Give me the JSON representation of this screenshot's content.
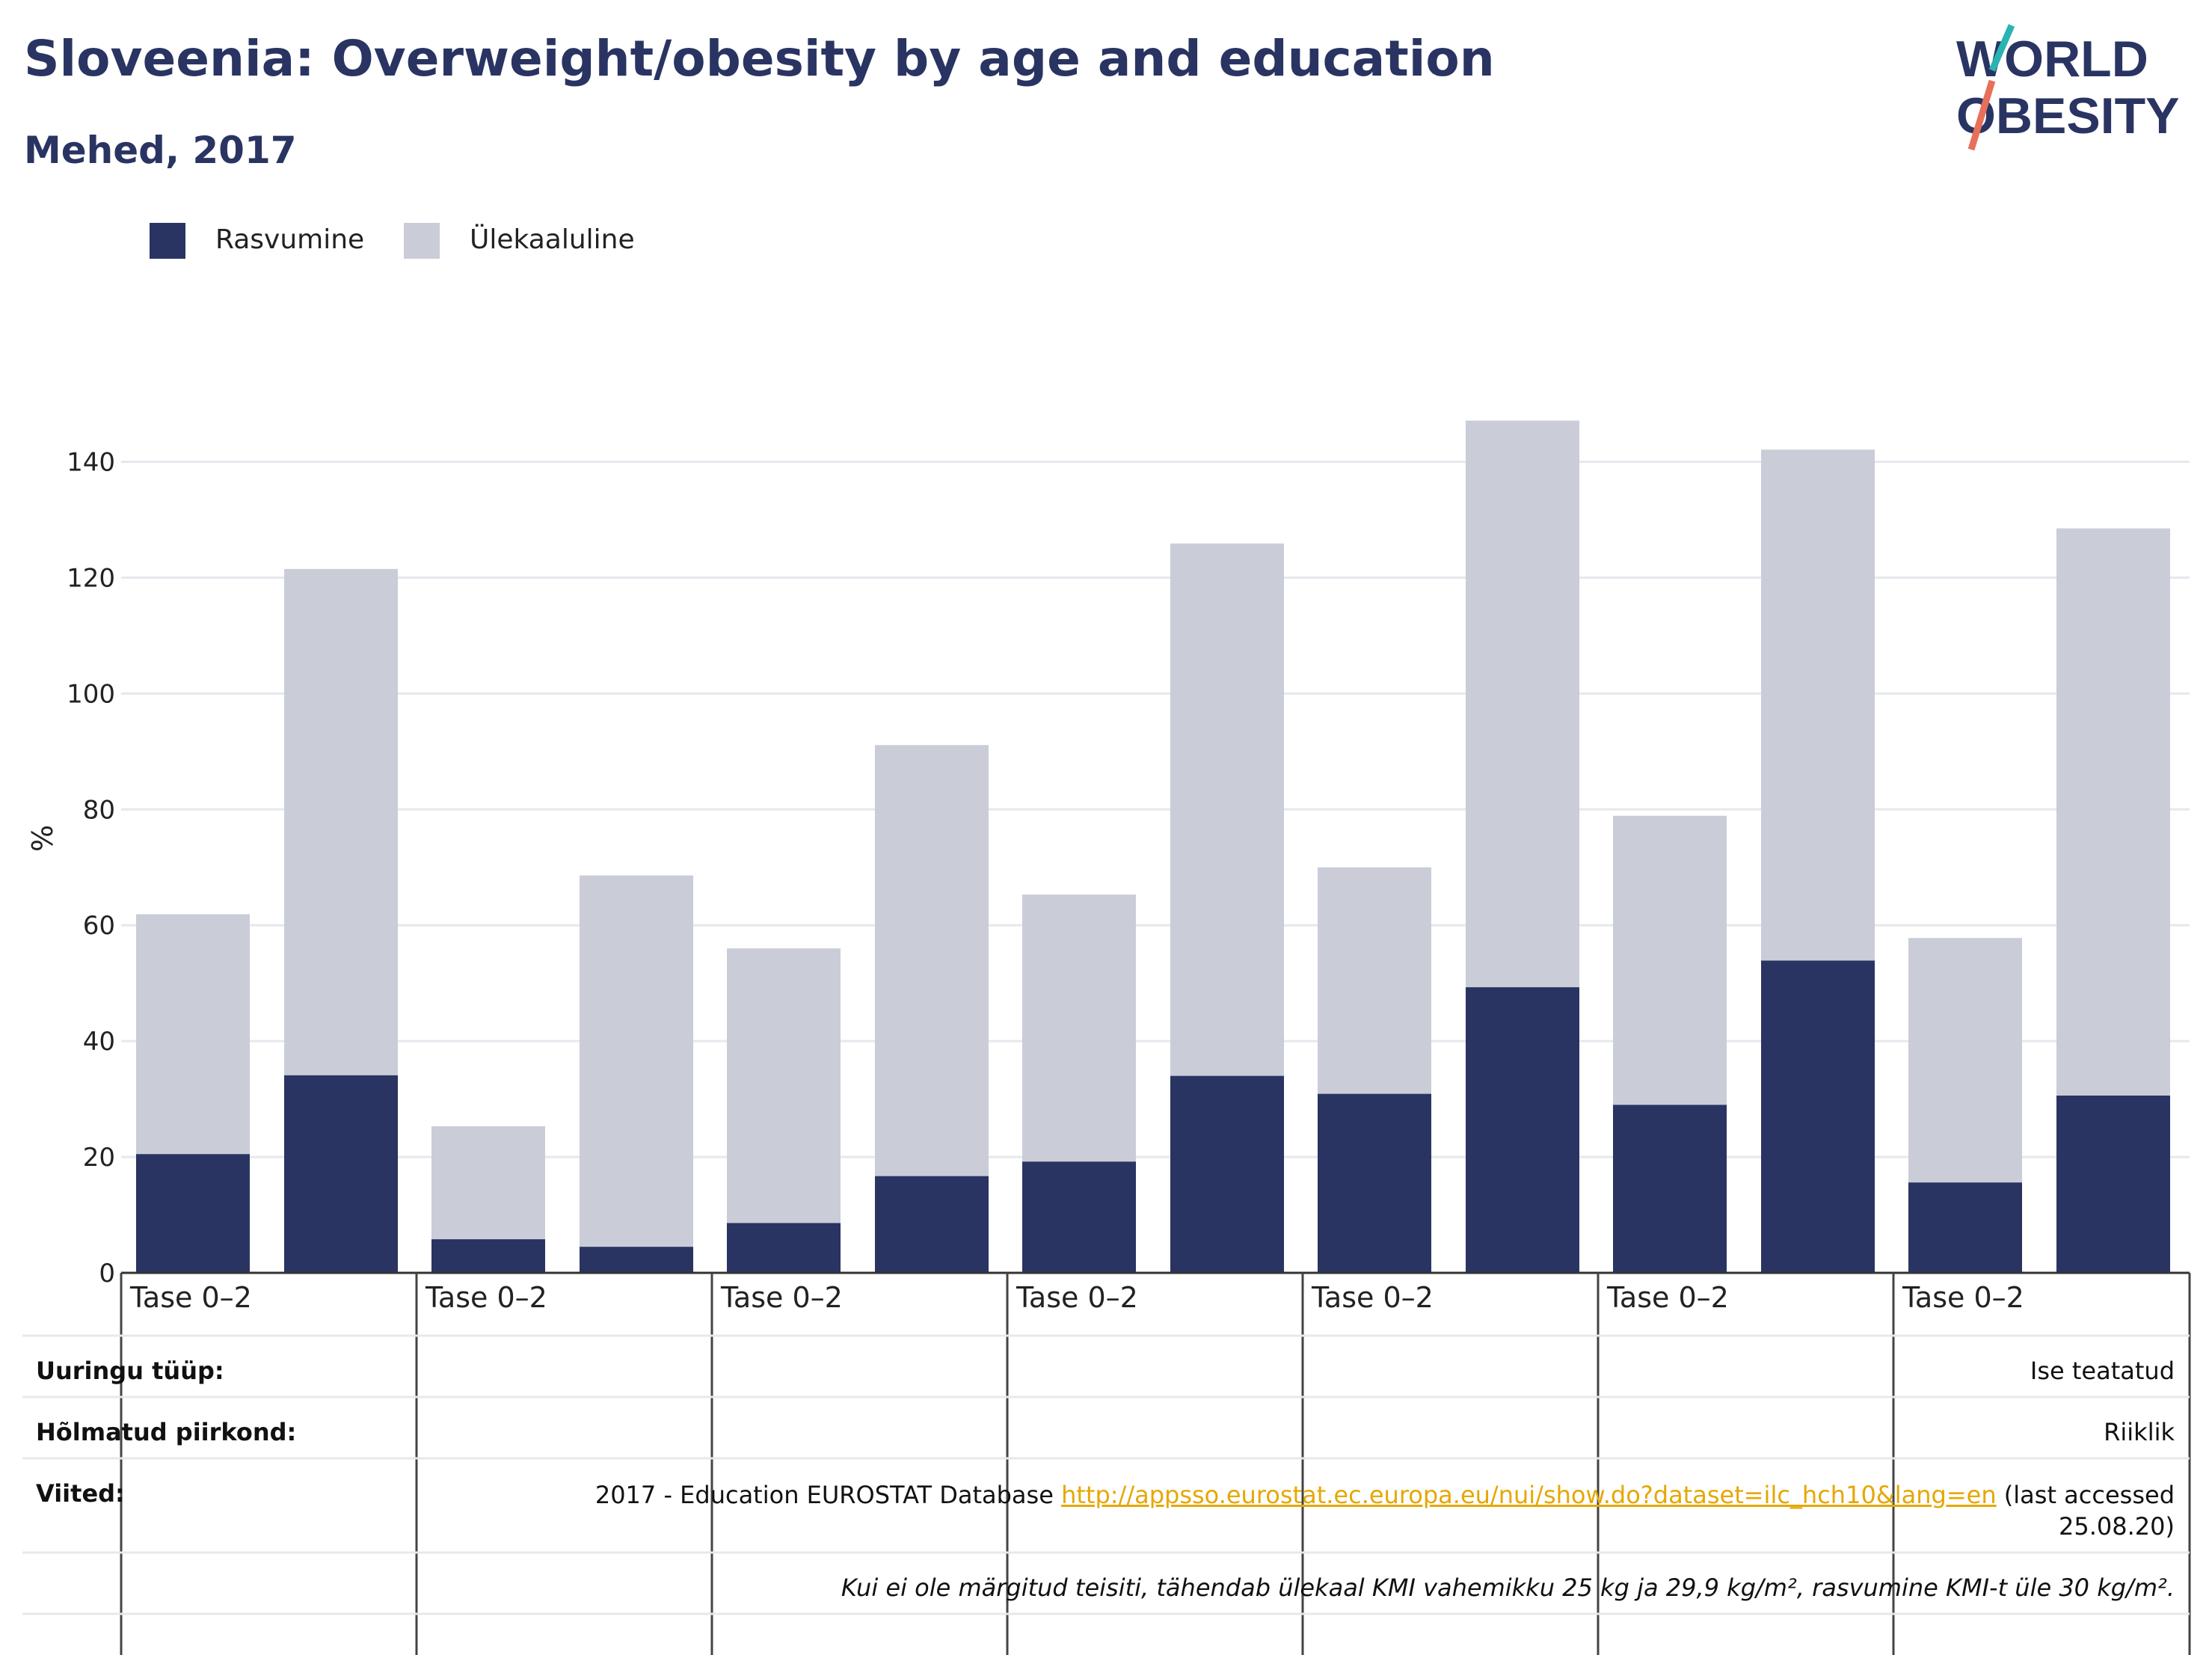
{
  "title": "Sloveenia: Overweight/obesity by age and education",
  "subtitle": "Mehed, 2017",
  "logo": {
    "line1": "WORLD",
    "line2": "OBESITY",
    "accent_top": "#2ab3b3",
    "accent_bottom": "#e8705a",
    "text_color": "#293462"
  },
  "colors": {
    "obesity": "#293462",
    "overweight": "#cacdd8",
    "grid": "#e6e8ee",
    "axis": "#333333"
  },
  "legend": {
    "obesity_label": "Rasvumine",
    "overweight_label": "Ülekaaluline"
  },
  "chart_data": {
    "type": "bar",
    "stacked": true,
    "ylabel": "%",
    "ylim": [
      0,
      150
    ],
    "yticks": [
      0,
      20,
      40,
      60,
      80,
      100,
      120,
      140
    ],
    "grid": true,
    "legend_position": "top-left",
    "group_labels": [
      "Tase 0–2",
      "Tase 0–2",
      "Tase 0–2",
      "Tase 0–2",
      "Tase 0–2",
      "Tase 0–2",
      "Tase 0–2"
    ],
    "series": [
      {
        "name": "Rasvumine",
        "values": [
          20.5,
          34.1,
          5.8,
          4.5,
          8.6,
          16.7,
          19.2,
          34.0,
          30.9,
          49.3,
          29.0,
          53.9,
          15.6,
          30.6
        ]
      },
      {
        "name": "Ülekaaluline",
        "values": [
          41.4,
          87.4,
          19.5,
          64.1,
          47.4,
          74.4,
          46.1,
          91.9,
          39.1,
          97.8,
          49.9,
          88.2,
          42.2,
          97.9
        ]
      }
    ]
  },
  "info": {
    "survey_type_label": "Uuringu tüüp:",
    "survey_type_value": "Ise teatatud",
    "coverage_label": "Hõlmatud piirkond:",
    "coverage_value": "Riiklik",
    "references_label": "Viited:",
    "reference_text": "2017 - Education EUROSTAT Database",
    "reference_link": "http://appsso.eurostat.ec.europa.eu/nui/show.do?dataset=ilc_hch10&lang=en",
    "reference_suffix_1": "(last accessed",
    "reference_suffix_2": "25.08.20)",
    "note": "Kui ei ole märgitud teisiti, tähendab ülekaal KMI vahemikku 25 kg ja 29,9 kg/m², rasvumine KMI-t üle 30 kg/m²."
  }
}
